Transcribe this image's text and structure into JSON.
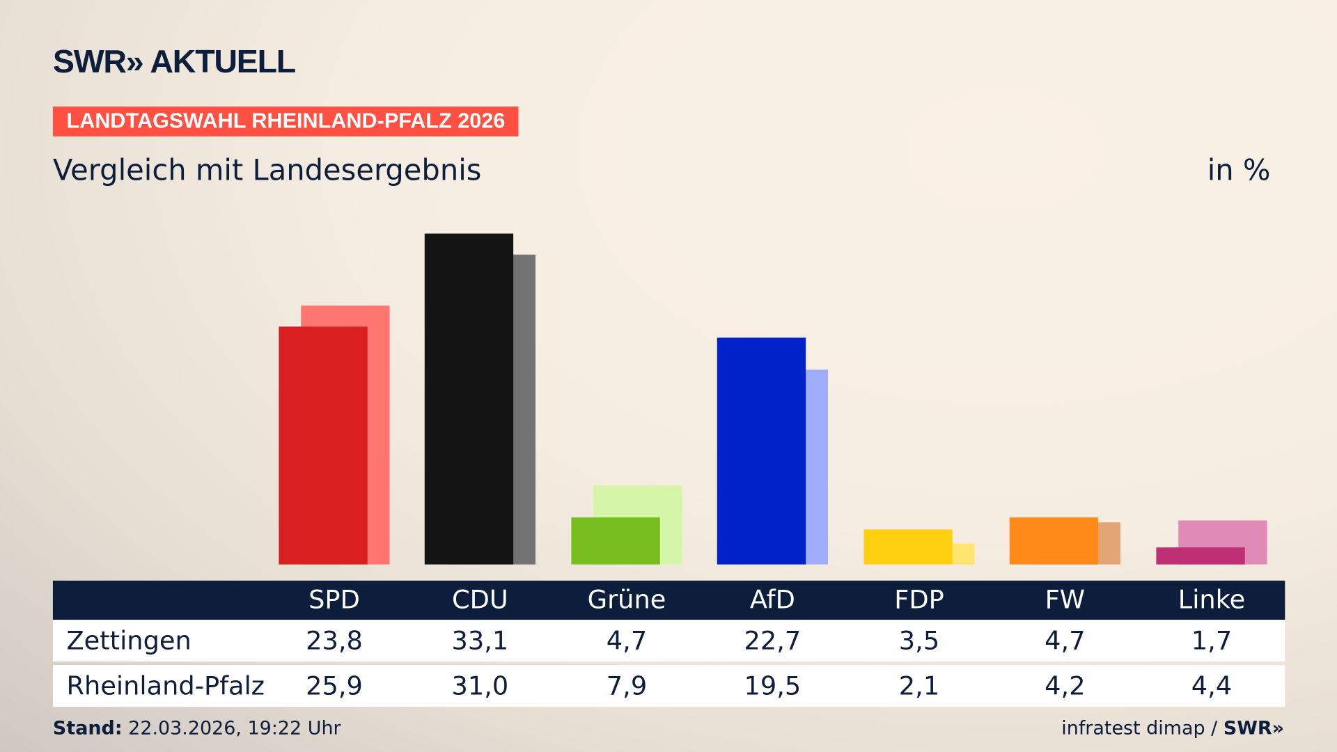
{
  "logo": "SWR» AKTUELL",
  "tag": "LANDTAGSWAHL RHEINLAND-PFALZ 2026",
  "subtitle": "Vergleich mit Landesergebnis",
  "unit": "in %",
  "chart_data": {
    "type": "bar",
    "categories": [
      "SPD",
      "CDU",
      "Grüne",
      "AfD",
      "FDP",
      "FW",
      "Linke"
    ],
    "series": [
      {
        "name": "Zettingen",
        "values": [
          23.8,
          33.1,
          4.7,
          22.7,
          3.5,
          4.7,
          1.7
        ],
        "display": [
          "23,8",
          "33,1",
          "4,7",
          "22,7",
          "3,5",
          "4,7",
          "1,7"
        ],
        "colors": [
          "#d91f1f",
          "#141414",
          "#78be1e",
          "#0022c8",
          "#ffd00f",
          "#ff8a1a",
          "#be2f74"
        ]
      },
      {
        "name": "Rheinland-Pfalz",
        "values": [
          25.9,
          31.0,
          7.9,
          19.5,
          2.1,
          4.2,
          4.4
        ],
        "display": [
          "25,9",
          "31,0",
          "7,9",
          "19,5",
          "2,1",
          "4,2",
          "4,4"
        ],
        "colors": [
          "#ff7670",
          "#737373",
          "#d5f5a8",
          "#a0adfc",
          "#ffe46f",
          "#e0a573",
          "#e08ab6"
        ]
      }
    ],
    "ylim": [
      0,
      33.1
    ]
  },
  "footer": {
    "stand_label": "Stand:",
    "stand_value": " 22.03.2026, 19:22 Uhr",
    "source": "infratest dimap / ",
    "source_logo": "SWR»"
  }
}
